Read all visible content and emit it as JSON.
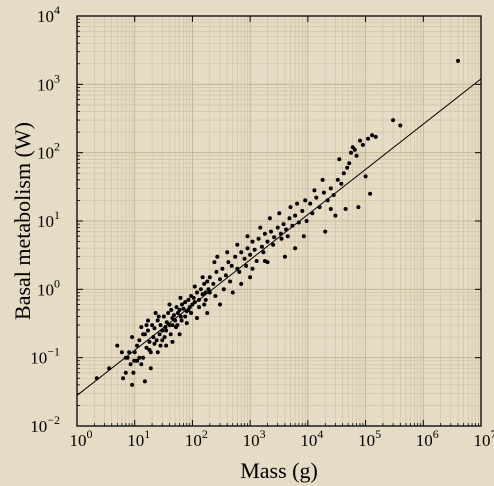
{
  "chart_data": {
    "type": "scatter",
    "xlabel": "Mass (g)",
    "ylabel": "Basal metabolism (W)",
    "x_scale": "log",
    "y_scale": "log",
    "xlim": [
      1,
      10000000
    ],
    "ylim": [
      0.01,
      10000
    ],
    "grid": true,
    "x_ticks": [
      {
        "base": "10",
        "exp": "0",
        "value": 1
      },
      {
        "base": "10",
        "exp": "1",
        "value": 10
      },
      {
        "base": "10",
        "exp": "2",
        "value": 100
      },
      {
        "base": "10",
        "exp": "3",
        "value": 1000
      },
      {
        "base": "10",
        "exp": "4",
        "value": 10000
      },
      {
        "base": "10",
        "exp": "5",
        "value": 100000
      },
      {
        "base": "10",
        "exp": "6",
        "value": 1000000
      },
      {
        "base": "10",
        "exp": "7",
        "value": 10000000
      }
    ],
    "y_ticks": [
      {
        "base": "10",
        "exp": "−2",
        "value": 0.01
      },
      {
        "base": "10",
        "exp": "−1",
        "value": 0.1
      },
      {
        "base": "10",
        "exp": "0",
        "value": 1
      },
      {
        "base": "10",
        "exp": "1",
        "value": 10
      },
      {
        "base": "10",
        "exp": "2",
        "value": 100
      },
      {
        "base": "10",
        "exp": "3",
        "value": 1000
      },
      {
        "base": "10",
        "exp": "4",
        "value": 10000
      }
    ],
    "fit_line": {
      "x": [
        1,
        10000000
      ],
      "y": [
        0.028,
        1200
      ]
    },
    "series": [
      {
        "points": [
          [
            2.2,
            0.05
          ],
          [
            3.6,
            0.07
          ],
          [
            5,
            0.15
          ],
          [
            6.3,
            0.05
          ],
          [
            7,
            0.06
          ],
          [
            7.5,
            0.1
          ],
          [
            8,
            0.12
          ],
          [
            8.5,
            0.08
          ],
          [
            9,
            0.2
          ],
          [
            9.5,
            0.06
          ],
          [
            10,
            0.12
          ],
          [
            11,
            0.15
          ],
          [
            12,
            0.18
          ],
          [
            13,
            0.08
          ],
          [
            14,
            0.1
          ],
          [
            15,
            0.22
          ],
          [
            16,
            0.14
          ],
          [
            17,
            0.25
          ],
          [
            18,
            0.17
          ],
          [
            19,
            0.12
          ],
          [
            20,
            0.3
          ],
          [
            21,
            0.2
          ],
          [
            22,
            0.27
          ],
          [
            24,
            0.18
          ],
          [
            25,
            0.35
          ],
          [
            27,
            0.22
          ],
          [
            28,
            0.3
          ],
          [
            30,
            0.25
          ],
          [
            32,
            0.4
          ],
          [
            34,
            0.28
          ],
          [
            36,
            0.33
          ],
          [
            38,
            0.45
          ],
          [
            40,
            0.3
          ],
          [
            43,
            0.5
          ],
          [
            45,
            0.38
          ],
          [
            48,
            0.42
          ],
          [
            50,
            0.35
          ],
          [
            53,
            0.55
          ],
          [
            56,
            0.45
          ],
          [
            60,
            0.5
          ],
          [
            63,
            0.4
          ],
          [
            66,
            0.6
          ],
          [
            70,
            0.52
          ],
          [
            75,
            0.65
          ],
          [
            80,
            0.48
          ],
          [
            85,
            0.7
          ],
          [
            90,
            0.55
          ],
          [
            95,
            0.8
          ],
          [
            100,
            0.6
          ],
          [
            105,
            0.75
          ],
          [
            110,
            0.65
          ],
          [
            120,
            0.9
          ],
          [
            130,
            0.7
          ],
          [
            140,
            1.0
          ],
          [
            150,
            0.85
          ],
          [
            160,
            1.2
          ],
          [
            170,
            0.9
          ],
          [
            180,
            1.3
          ],
          [
            190,
            1.0
          ],
          [
            200,
            1.5
          ],
          [
            12,
            0.1
          ],
          [
            14,
            0.22
          ],
          [
            16,
            0.3
          ],
          [
            18,
            0.13
          ],
          [
            22,
            0.16
          ],
          [
            26,
            0.4
          ],
          [
            30,
            0.18
          ],
          [
            35,
            0.25
          ],
          [
            40,
            0.6
          ],
          [
            45,
            0.3
          ],
          [
            55,
            0.3
          ],
          [
            65,
            0.35
          ],
          [
            75,
            0.4
          ],
          [
            85,
            0.5
          ],
          [
            95,
            0.45
          ],
          [
            110,
            1.1
          ],
          [
            130,
            0.55
          ],
          [
            150,
            1.5
          ],
          [
            170,
            0.7
          ],
          [
            200,
            0.9
          ],
          [
            15,
            0.045
          ],
          [
            11,
            0.09
          ],
          [
            13,
            0.28
          ],
          [
            17,
            0.35
          ],
          [
            23,
            0.45
          ],
          [
            28,
            0.15
          ],
          [
            33,
            0.2
          ],
          [
            42,
            0.22
          ],
          [
            52,
            0.28
          ],
          [
            62,
            0.75
          ],
          [
            230,
            1.2
          ],
          [
            260,
            1.8
          ],
          [
            300,
            1.4
          ],
          [
            330,
            2.0
          ],
          [
            380,
            1.6
          ],
          [
            420,
            2.5
          ],
          [
            480,
            2.2
          ],
          [
            550,
            3.0
          ],
          [
            600,
            2.0
          ],
          [
            700,
            3.5
          ],
          [
            800,
            2.8
          ],
          [
            900,
            4.0
          ],
          [
            1000,
            3.2
          ],
          [
            1100,
            5.0
          ],
          [
            1200,
            3.8
          ],
          [
            1400,
            5.5
          ],
          [
            1600,
            4.2
          ],
          [
            1800,
            6.5
          ],
          [
            2000,
            5.0
          ],
          [
            2300,
            7.0
          ],
          [
            2600,
            5.8
          ],
          [
            3000,
            8.0
          ],
          [
            3400,
            6.5
          ],
          [
            3800,
            9.0
          ],
          [
            4200,
            7.5
          ],
          [
            4800,
            11.0
          ],
          [
            5400,
            8.5
          ],
          [
            6000,
            12.0
          ],
          [
            7000,
            9.5
          ],
          [
            8000,
            14.0
          ],
          [
            250,
            0.8
          ],
          [
            350,
            1.0
          ],
          [
            450,
            1.3
          ],
          [
            650,
            1.8
          ],
          [
            850,
            2.2
          ],
          [
            1300,
            2.6
          ],
          [
            1700,
            3.5
          ],
          [
            2500,
            4.5
          ],
          [
            3500,
            5.5
          ],
          [
            4500,
            6.0
          ],
          [
            270,
            3.0
          ],
          [
            400,
            3.5
          ],
          [
            600,
            4.5
          ],
          [
            900,
            6.0
          ],
          [
            1500,
            8.0
          ],
          [
            2200,
            11.0
          ],
          [
            3200,
            13.0
          ],
          [
            5000,
            16.0
          ],
          [
            6500,
            18.0
          ],
          [
            9000,
            20.0
          ],
          [
            9500,
            10.0
          ],
          [
            11000,
            18.0
          ],
          [
            12000,
            13.0
          ],
          [
            14000,
            22.0
          ],
          [
            16000,
            16.0
          ],
          [
            19000,
            26.0
          ],
          [
            22000,
            20.0
          ],
          [
            25000,
            30.0
          ],
          [
            28000,
            24.0
          ],
          [
            33000,
            40.0
          ],
          [
            38000,
            35.0
          ],
          [
            42000,
            50.0
          ],
          [
            48000,
            60.0
          ],
          [
            52000,
            70.0
          ],
          [
            56000,
            100.0
          ],
          [
            60000,
            120.0
          ],
          [
            65000,
            110.0
          ],
          [
            70000,
            90.0
          ],
          [
            80000,
            150.0
          ],
          [
            90000,
            130.0
          ],
          [
            100000,
            45.0
          ],
          [
            110000,
            160.0
          ],
          [
            130000,
            180.0
          ],
          [
            150000,
            170.0
          ],
          [
            300000,
            300.0
          ],
          [
            400000,
            250.0
          ],
          [
            4000000,
            2200.0
          ],
          [
            20000,
            7.0
          ],
          [
            30000,
            12.0
          ],
          [
            45000,
            15.0
          ],
          [
            75000,
            16.0
          ],
          [
            120000,
            25.0
          ],
          [
            18000,
            40.0
          ],
          [
            35000,
            80.0
          ],
          [
            25000,
            15.0
          ],
          [
            13000,
            28.0
          ],
          [
            8500,
            6.0
          ],
          [
            6000,
            4.0
          ],
          [
            4000,
            3.0
          ],
          [
            2000,
            2.5
          ],
          [
            1000,
            1.5
          ],
          [
            500,
            0.9
          ],
          [
            300,
            0.6
          ],
          [
            180,
            0.45
          ],
          [
            120,
            0.38
          ],
          [
            80,
            0.32
          ],
          [
            60,
            0.22
          ],
          [
            45,
            0.17
          ],
          [
            35,
            0.15
          ],
          [
            25,
            0.12
          ],
          [
            19,
            0.07
          ],
          [
            9,
            0.04
          ],
          [
            7,
            0.1
          ],
          [
            6,
            0.12
          ],
          [
            9.8,
            0.09
          ],
          [
            160,
            0.6
          ],
          [
            240,
            2.5
          ],
          [
            700,
            1.2
          ],
          [
            1100,
            2.0
          ],
          [
            1800,
            2.6
          ]
        ]
      }
    ]
  }
}
